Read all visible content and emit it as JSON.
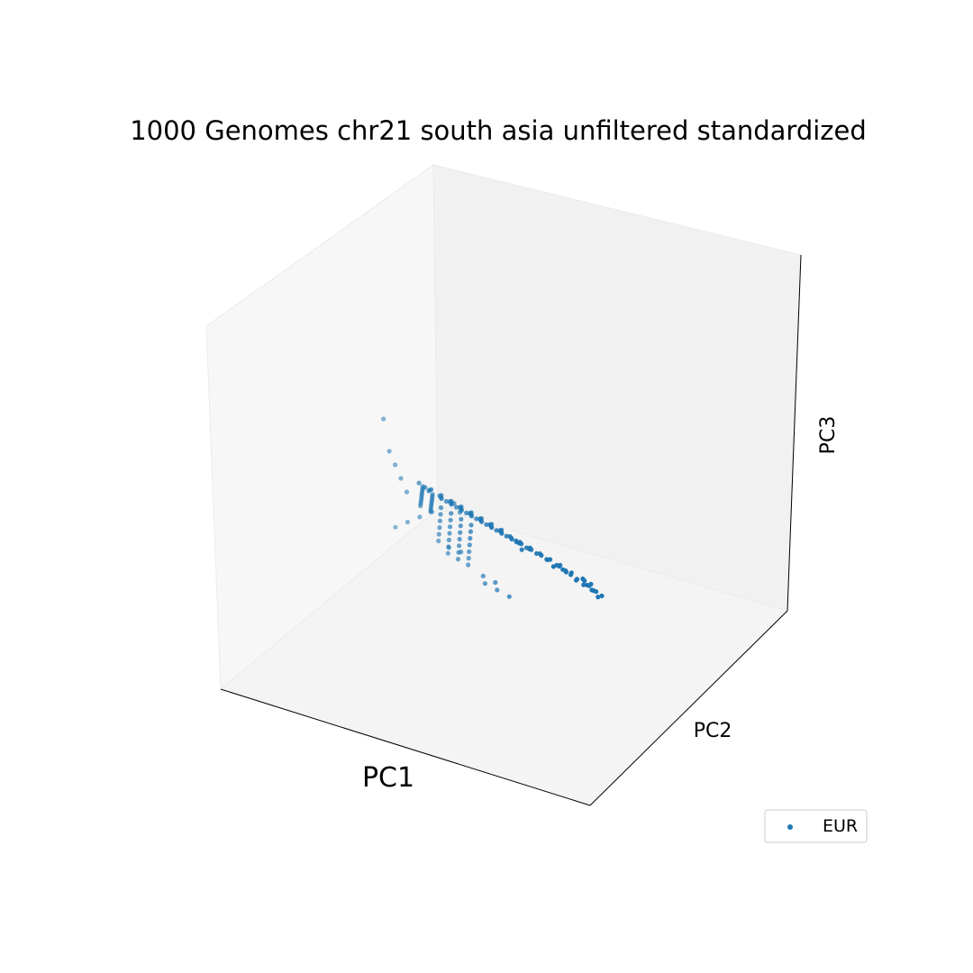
{
  "chart_data": {
    "type": "scatter",
    "projection": "3d",
    "title": "1000 Genomes chr21 south asia unfiltered standardized",
    "xlabel": "PC1",
    "ylabel": "PC2",
    "zlabel": "PC3",
    "legend": {
      "placement": "lower-right",
      "entries": [
        "EUR"
      ]
    },
    "grid": false,
    "ticks": false,
    "series": [
      {
        "name": "EUR",
        "color": "#1f77b4",
        "points": [
          [
            0.88,
            0.9,
            0.03
          ],
          [
            0.86,
            0.92,
            0.05
          ],
          [
            0.9,
            0.88,
            0.02
          ],
          [
            0.84,
            0.86,
            0.06
          ],
          [
            0.87,
            0.84,
            0.04
          ],
          [
            0.82,
            0.9,
            0.08
          ],
          [
            0.89,
            0.93,
            0.01
          ],
          [
            0.85,
            0.8,
            0.07
          ],
          [
            0.8,
            0.85,
            0.09
          ],
          [
            0.91,
            0.86,
            0.03
          ],
          [
            0.83,
            0.78,
            0.1
          ],
          [
            0.78,
            0.82,
            0.11
          ],
          [
            0.86,
            0.76,
            0.08
          ],
          [
            0.81,
            0.74,
            0.12
          ],
          [
            0.76,
            0.8,
            0.13
          ],
          [
            0.88,
            0.72,
            0.06
          ],
          [
            0.79,
            0.7,
            0.14
          ],
          [
            0.74,
            0.76,
            0.15
          ],
          [
            0.84,
            0.68,
            0.11
          ],
          [
            0.77,
            0.66,
            0.16
          ],
          [
            0.72,
            0.72,
            0.17
          ],
          [
            0.82,
            0.64,
            0.13
          ],
          [
            0.75,
            0.62,
            0.18
          ],
          [
            0.7,
            0.68,
            0.19
          ],
          [
            0.8,
            0.6,
            0.15
          ],
          [
            0.73,
            0.58,
            0.2
          ],
          [
            0.68,
            0.64,
            0.21
          ],
          [
            0.78,
            0.56,
            0.17
          ],
          [
            0.71,
            0.54,
            0.22
          ],
          [
            0.66,
            0.6,
            0.23
          ],
          [
            0.76,
            0.52,
            0.19
          ],
          [
            0.69,
            0.5,
            0.24
          ],
          [
            0.64,
            0.56,
            0.25
          ],
          [
            0.74,
            0.48,
            0.21
          ],
          [
            0.67,
            0.46,
            0.26
          ],
          [
            0.62,
            0.52,
            0.27
          ],
          [
            0.72,
            0.44,
            0.23
          ],
          [
            0.65,
            0.42,
            0.28
          ],
          [
            0.6,
            0.48,
            0.29
          ],
          [
            0.7,
            0.4,
            0.25
          ],
          [
            0.63,
            0.38,
            0.3
          ],
          [
            0.58,
            0.44,
            0.31
          ],
          [
            0.68,
            0.36,
            0.27
          ],
          [
            0.61,
            0.34,
            0.32
          ],
          [
            0.56,
            0.4,
            0.33
          ],
          [
            0.66,
            0.32,
            0.29
          ],
          [
            0.59,
            0.3,
            0.34
          ],
          [
            0.54,
            0.36,
            0.35
          ],
          [
            0.64,
            0.28,
            0.31
          ],
          [
            0.57,
            0.26,
            0.36
          ],
          [
            0.87,
            0.95,
            0.0
          ],
          [
            0.83,
            0.94,
            0.04
          ],
          [
            0.79,
            0.92,
            0.07
          ],
          [
            0.85,
            0.98,
            0.02
          ],
          [
            0.81,
            0.96,
            0.05
          ],
          [
            0.9,
            0.8,
            0.05
          ],
          [
            0.88,
            0.78,
            0.06
          ],
          [
            0.86,
            0.7,
            0.09
          ],
          [
            0.84,
            0.62,
            0.12
          ],
          [
            0.82,
            0.58,
            0.14
          ],
          [
            0.8,
            0.5,
            0.18
          ],
          [
            0.78,
            0.46,
            0.2
          ],
          [
            0.76,
            0.42,
            0.22
          ],
          [
            0.74,
            0.38,
            0.24
          ],
          [
            0.72,
            0.34,
            0.26
          ],
          [
            0.7,
            0.3,
            0.28
          ],
          [
            0.68,
            0.26,
            0.3
          ],
          [
            0.66,
            0.22,
            0.32
          ],
          [
            0.64,
            0.2,
            0.33
          ],
          [
            0.62,
            0.18,
            0.35
          ],
          [
            0.6,
            0.24,
            0.34
          ],
          [
            0.58,
            0.22,
            0.36
          ],
          [
            0.56,
            0.28,
            0.35
          ],
          [
            0.54,
            0.24,
            0.37
          ],
          [
            0.52,
            0.3,
            0.36
          ],
          [
            0.5,
            0.26,
            0.38
          ],
          [
            0.48,
            0.32,
            0.37
          ],
          [
            0.46,
            0.28,
            0.39
          ],
          [
            0.44,
            0.34,
            0.38
          ],
          [
            0.42,
            0.3,
            0.4
          ],
          [
            0.4,
            0.36,
            0.39
          ],
          [
            0.38,
            0.32,
            0.41
          ],
          [
            0.36,
            0.38,
            0.4
          ],
          [
            0.34,
            0.34,
            0.42
          ],
          [
            0.32,
            0.4,
            0.41
          ],
          [
            0.3,
            0.36,
            0.43
          ],
          [
            0.28,
            0.42,
            0.42
          ],
          [
            0.26,
            0.38,
            0.44
          ],
          [
            0.24,
            0.44,
            0.43
          ],
          [
            0.22,
            0.4,
            0.45
          ],
          [
            0.75,
            0.6,
            0.18
          ],
          [
            0.73,
            0.64,
            0.16
          ],
          [
            0.71,
            0.6,
            0.2
          ],
          [
            0.69,
            0.56,
            0.22
          ],
          [
            0.67,
            0.52,
            0.24
          ],
          [
            0.65,
            0.48,
            0.26
          ],
          [
            0.63,
            0.44,
            0.28
          ],
          [
            0.61,
            0.4,
            0.3
          ],
          [
            0.59,
            0.36,
            0.32
          ],
          [
            0.57,
            0.32,
            0.34
          ],
          [
            0.55,
            0.48,
            0.28
          ],
          [
            0.53,
            0.44,
            0.3
          ],
          [
            0.51,
            0.4,
            0.32
          ],
          [
            0.49,
            0.36,
            0.34
          ],
          [
            0.47,
            0.52,
            0.29
          ],
          [
            0.45,
            0.48,
            0.31
          ],
          [
            0.43,
            0.44,
            0.33
          ],
          [
            0.41,
            0.4,
            0.35
          ],
          [
            0.39,
            0.56,
            0.3
          ],
          [
            0.37,
            0.52,
            0.32
          ],
          [
            0.35,
            0.48,
            0.34
          ],
          [
            0.33,
            0.44,
            0.36
          ],
          [
            0.31,
            0.6,
            0.31
          ],
          [
            0.29,
            0.56,
            0.33
          ],
          [
            0.27,
            0.52,
            0.35
          ],
          [
            0.25,
            0.48,
            0.37
          ],
          [
            0.23,
            0.64,
            0.32
          ],
          [
            0.21,
            0.6,
            0.34
          ],
          [
            0.19,
            0.56,
            0.36
          ],
          [
            0.17,
            0.52,
            0.38
          ],
          [
            0.15,
            0.68,
            0.33
          ],
          [
            0.13,
            0.64,
            0.35
          ],
          [
            0.11,
            0.6,
            0.37
          ],
          [
            0.09,
            0.56,
            0.39
          ],
          [
            0.07,
            0.72,
            0.34
          ],
          [
            0.05,
            0.68,
            0.36
          ],
          [
            0.03,
            0.64,
            0.38
          ],
          [
            0.08,
            0.8,
            0.28
          ],
          [
            0.12,
            0.84,
            0.25
          ],
          [
            0.16,
            0.88,
            0.22
          ],
          [
            0.18,
            0.62,
            0.5
          ],
          [
            0.2,
            0.58,
            0.52
          ],
          [
            0.14,
            0.5,
            0.48
          ],
          [
            0.1,
            0.46,
            0.46
          ],
          [
            0.06,
            0.42,
            0.44
          ],
          [
            0.02,
            0.38,
            0.42
          ],
          [
            0.1,
            0.78,
            0.3
          ],
          [
            0.14,
            0.82,
            0.27
          ],
          [
            0.04,
            0.7,
            0.4
          ],
          [
            0.0,
            0.66,
            0.42
          ],
          [
            0.3,
            0.2,
            0.6
          ],
          [
            0.32,
            0.16,
            0.72
          ],
          [
            0.28,
            0.24,
            0.56
          ],
          [
            0.26,
            0.28,
            0.52
          ],
          [
            0.24,
            0.32,
            0.48
          ]
        ]
      }
    ]
  }
}
